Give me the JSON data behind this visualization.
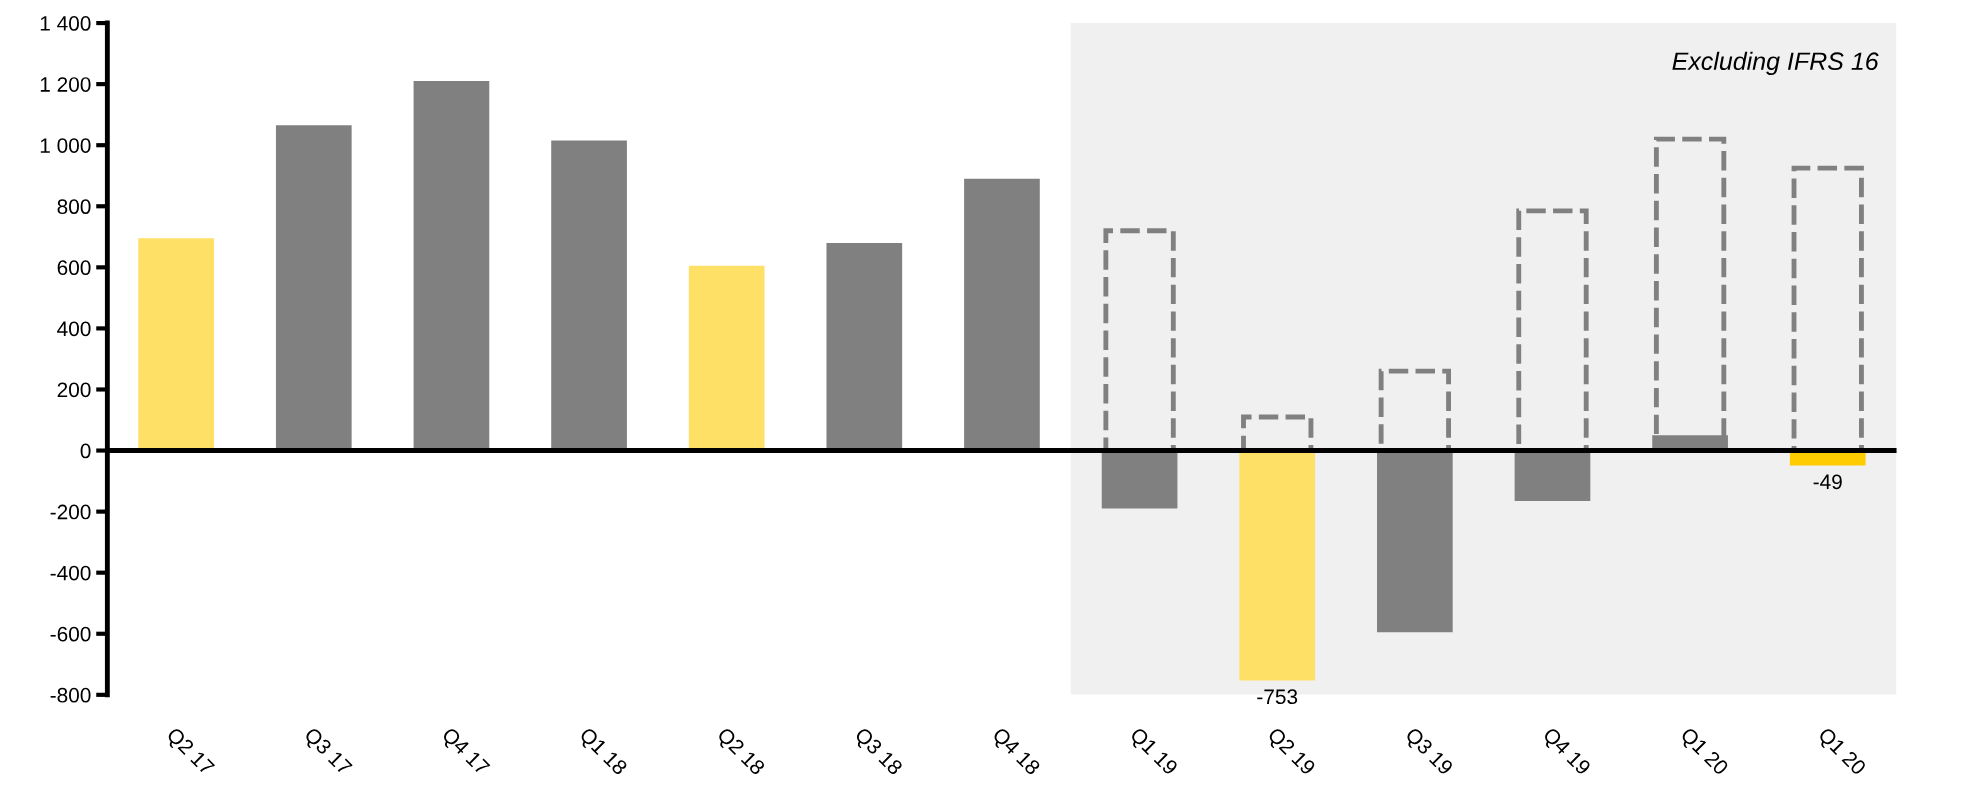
{
  "chart_data": {
    "type": "bar",
    "categories": [
      "Q2 17",
      "Q3 17",
      "Q4 17",
      "Q1 18",
      "Q2 18",
      "Q3 18",
      "Q4 18",
      "Q1 19",
      "Q2 19",
      "Q3 19",
      "Q4 19",
      "Q1 20",
      "Q1 20"
    ],
    "series": [
      {
        "colors": [
          "#ffe066",
          "#808080",
          "#808080",
          "#808080",
          "#ffe066",
          "#808080",
          "#808080",
          "#808080",
          "#ffe066",
          "#808080",
          "#808080",
          "#808080",
          "#ffcc00"
        ],
        "values": [
          695,
          1065,
          1210,
          1015,
          605,
          680,
          890,
          -190,
          -753,
          -595,
          -165,
          50,
          -49
        ],
        "value_labels": [
          null,
          null,
          null,
          null,
          null,
          null,
          null,
          null,
          "-753",
          null,
          null,
          null,
          "-49"
        ]
      },
      {
        "color": "#808080",
        "line_style": "dashed",
        "values": [
          null,
          null,
          null,
          null,
          null,
          null,
          null,
          720,
          110,
          260,
          785,
          1020,
          925
        ]
      }
    ],
    "ylim": [
      -800,
      1400
    ],
    "yticks": [
      -800,
      -600,
      -400,
      -200,
      0,
      200,
      400,
      600,
      800,
      {
        "value": 1000,
        "label": "1 000"
      },
      {
        "value": 1200,
        "label": "1 200"
      },
      {
        "value": 1400,
        "label": "1 400"
      }
    ],
    "annotations": [
      "Excluding IFRS 16"
    ],
    "legend": false
  }
}
